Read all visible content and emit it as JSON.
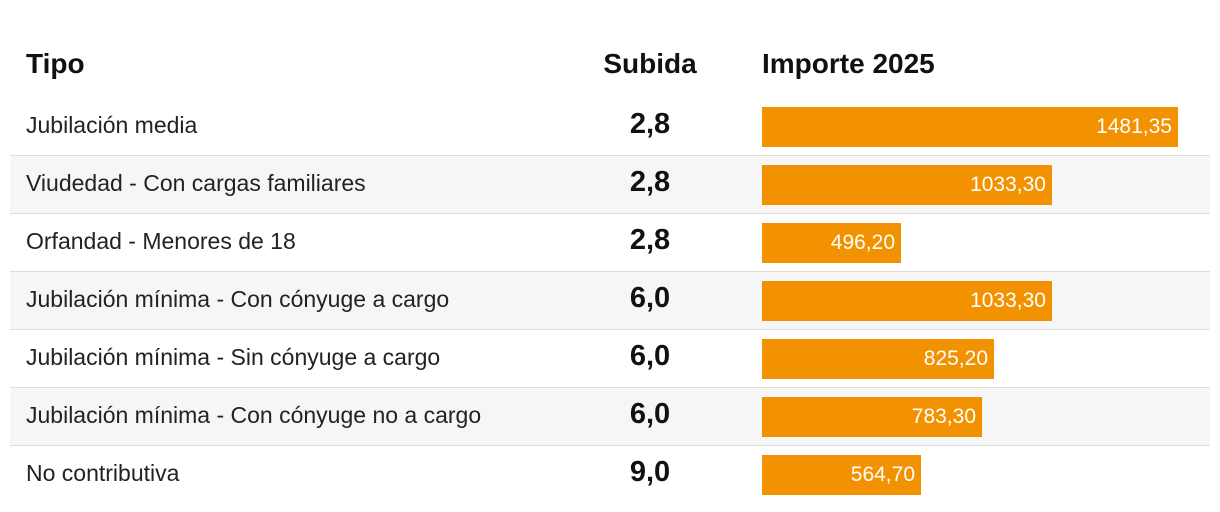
{
  "chart_data": {
    "type": "bar",
    "columns": {
      "tipo": "Tipo",
      "subida": "Subida",
      "importe": "Importe 2025"
    },
    "categories": [
      "Jubilación media",
      "Viudedad - Con cargas familiares",
      "Orfandad - Menores de 18",
      "Jubilación mínima - Con cónyuge a cargo",
      "Jubilación mínima - Sin cónyuge a cargo",
      "Jubilación mínima - Con cónyuge no a cargo",
      "No contributiva"
    ],
    "subida": [
      "2,8",
      "2,8",
      "2,8",
      "6,0",
      "6,0",
      "6,0",
      "9,0"
    ],
    "values": [
      1481.35,
      1033.3,
      496.2,
      1033.3,
      825.2,
      783.3,
      564.7
    ],
    "value_labels": [
      "1481,35",
      "1033,30",
      "496,20",
      "1033,30",
      "825,20",
      "783,30",
      "564,70"
    ],
    "xlim": [
      0,
      1481.35
    ],
    "bar_color": "#f39200"
  }
}
